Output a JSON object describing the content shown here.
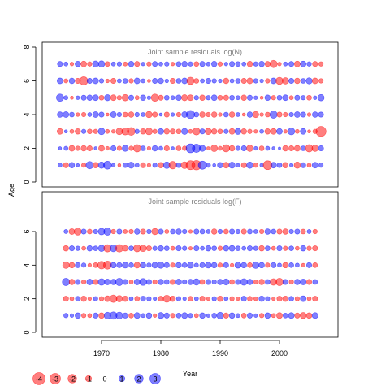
{
  "chart_data": [
    {
      "type": "scatter",
      "title": "Joint sample residuals log(N)",
      "xlabel": "Year",
      "ylabel": "Age",
      "xlim": [
        1962,
        2007
      ],
      "ylim": [
        0,
        8
      ],
      "yticks": [
        0,
        2,
        4,
        6,
        8
      ],
      "ages": [
        1,
        2,
        3,
        4,
        5,
        6,
        7
      ],
      "years": [
        1963,
        2007
      ],
      "color_positive": "#0000ff",
      "color_negative": "#ff0000",
      "residuals": {
        "1": [
          0.5,
          -0.8,
          0.9,
          0.3,
          -0.6,
          1.6,
          -0.9,
          1.2,
          1.9,
          0.4,
          -0.3,
          0.7,
          1.1,
          0.5,
          -0.8,
          -0.4,
          0.6,
          -0.9,
          1.3,
          -1.7,
          0.7,
          -1.4,
          -2.4,
          -2.6,
          2.0,
          0.6,
          0.3,
          0.9,
          -1.0,
          1.1,
          0.4,
          -0.8,
          1.2,
          -0.6,
          0.4,
          -2.3,
          1.0,
          0.7,
          -0.9,
          0.4,
          -1.2,
          0.8,
          -0.5,
          1.0,
          0.6
        ],
        "2": [
          0.3,
          0.5,
          -1.0,
          -0.6,
          -0.9,
          -0.8,
          0.3,
          -1.0,
          -0.4,
          0.8,
          -0.6,
          1.1,
          -0.6,
          -1.6,
          0.7,
          -0.4,
          0.9,
          0.5,
          -0.8,
          0.3,
          -0.7,
          -0.6,
          2.3,
          2.0,
          1.1,
          -0.3,
          -1.3,
          -0.5,
          -1.5,
          -0.9,
          0.6,
          0.8,
          -1.2,
          0.4,
          -0.7,
          0.5,
          0.3,
          0.2,
          -0.9,
          -0.8,
          -1.0,
          0.7,
          -1.6,
          -1.2,
          0.8
        ],
        "3": [
          -1.0,
          0.3,
          -0.5,
          -0.9,
          0.6,
          -0.7,
          -0.6,
          1.3,
          -0.5,
          -0.4,
          -1.3,
          -1.5,
          -1.8,
          0.6,
          -0.9,
          -1.4,
          -0.6,
          1.0,
          -0.9,
          -0.8,
          -0.7,
          1.1,
          -0.5,
          -1.5,
          0.8,
          -1.2,
          -0.9,
          -0.7,
          0.6,
          -1.0,
          1.1,
          -0.9,
          -0.6,
          -0.4,
          0.5,
          -0.9,
          -1.0,
          1.0,
          -0.4,
          1.4,
          -0.5,
          1.0,
          -0.3,
          -0.6,
          -3.0
        ],
        "4": [
          0.9,
          1.0,
          0.7,
          -0.4,
          -0.6,
          0.5,
          1.0,
          0.8,
          -0.3,
          1.0,
          0.6,
          -0.7,
          -0.9,
          0.6,
          0.5,
          -1.2,
          -0.8,
          0.3,
          -0.8,
          0.4,
          -0.6,
          1.0,
          2.0,
          0.7,
          -0.9,
          -0.6,
          -0.9,
          -0.4,
          0.7,
          -0.9,
          0.5,
          -0.3,
          0.9,
          -1.1,
          -0.4,
          -0.7,
          1.6,
          -0.8,
          -0.6,
          0.6,
          1.0,
          0.8,
          -0.4,
          0.9,
          0.8
        ],
        "5": [
          1.6,
          0.5,
          -0.3,
          0.4,
          0.8,
          0.9,
          1.0,
          -0.7,
          1.1,
          -1.0,
          -0.6,
          -1.2,
          0.8,
          -0.5,
          0.9,
          0.4,
          -1.6,
          -0.8,
          0.7,
          0.5,
          0.9,
          -1.1,
          -1.0,
          0.6,
          -0.9,
          0.6,
          1.0,
          -0.7,
          -0.8,
          0.7,
          0.5,
          -0.9,
          0.8,
          0.4,
          -0.3,
          0.9,
          -0.6,
          0.7,
          1.0,
          -0.5,
          0.8,
          0.6,
          -0.7,
          0.4,
          1.2
        ],
        "6": [
          1.0,
          -0.5,
          0.9,
          -0.8,
          -2.0,
          0.8,
          1.0,
          0.6,
          -0.4,
          -0.8,
          0.5,
          0.7,
          -0.6,
          1.0,
          0.5,
          -0.3,
          0.8,
          0.9,
          0.4,
          -0.8,
          0.7,
          1.0,
          -1.6,
          -0.7,
          0.5,
          0.8,
          0.6,
          0.4,
          -0.9,
          0.5,
          0.7,
          -0.8,
          -1.0,
          0.6,
          0.4,
          -0.6,
          1.0,
          -1.5,
          -1.2,
          0.8,
          -0.9,
          0.7,
          1.1,
          -1.0,
          -0.6
        ],
        "7": [
          0.8,
          0.5,
          -0.4,
          0.9,
          -1.0,
          -0.6,
          1.1,
          1.2,
          -0.7,
          0.5,
          0.6,
          -0.5,
          0.9,
          -0.8,
          0.4,
          -0.6,
          0.8,
          0.5,
          0.6,
          -0.4,
          0.7,
          0.9,
          0.6,
          -0.7,
          0.8,
          0.5,
          0.9,
          -0.6,
          0.4,
          0.8,
          0.7,
          0.5,
          -0.9,
          0.6,
          0.9,
          -0.8,
          -1.6,
          -0.4,
          0.5,
          0.8,
          -1.0,
          1.0,
          0.6,
          -0.8,
          -0.6
        ]
      }
    },
    {
      "type": "scatter",
      "title": "Joint sample residuals log(F)",
      "xlabel": "Year",
      "ylabel": "Age",
      "xlim": [
        1962,
        2007
      ],
      "ylim": [
        0,
        7
      ],
      "yticks": [
        0,
        2,
        4,
        6
      ],
      "xticks": [
        1970,
        1980,
        1990,
        2000
      ],
      "ages": [
        1,
        2,
        3,
        4,
        5,
        6
      ],
      "years": [
        1964,
        2006
      ],
      "color_positive": "#0000ff",
      "color_negative": "#ff0000",
      "residuals": {
        "1": [
          0.6,
          0.4,
          0.9,
          -0.6,
          -0.5,
          0.8,
          -0.9,
          1.3,
          1.6,
          1.4,
          0.8,
          -0.7,
          1.0,
          0.5,
          0.9,
          -0.4,
          1.1,
          0.8,
          -0.6,
          0.7,
          1.0,
          0.6,
          -0.5,
          0.9,
          0.4,
          0.7,
          1.3,
          -0.8,
          0.9,
          0.5,
          -0.7,
          0.8,
          0.4,
          -0.6,
          0.9,
          -0.5,
          -1.0,
          0.7,
          1.0,
          -0.8,
          -1.1,
          -0.9,
          1.0
        ],
        "2": [
          -0.8,
          -0.5,
          0.7,
          -0.9,
          -0.4,
          0.6,
          -0.6,
          -1.0,
          -1.6,
          -1.2,
          -0.9,
          0.5,
          -0.7,
          0.8,
          0.6,
          0.4,
          -0.8,
          -1.5,
          -0.9,
          0.6,
          0.4,
          -0.7,
          0.5,
          -0.8,
          -0.4,
          0.6,
          -0.9,
          0.5,
          -0.6,
          -0.4,
          0.8,
          -0.7,
          -0.5,
          0.9,
          0.6,
          -0.4,
          -0.8,
          -0.9,
          0.7,
          -0.6,
          1.0,
          -0.5,
          -0.8
        ],
        "3": [
          1.6,
          -0.9,
          0.8,
          -0.6,
          1.0,
          -0.8,
          1.3,
          1.0,
          0.9,
          1.6,
          0.8,
          -0.5,
          1.0,
          1.4,
          0.8,
          -0.6,
          0.9,
          0.7,
          -0.8,
          1.0,
          0.6,
          0.9,
          1.2,
          -0.7,
          0.8,
          0.6,
          0.9,
          1.1,
          -0.7,
          0.8,
          1.3,
          0.9,
          -0.5,
          -0.9,
          0.7,
          -1.3,
          -1.6,
          0.8,
          -0.6,
          0.9,
          1.0,
          -0.8,
          0.7
        ],
        "4": [
          -1.3,
          -0.9,
          0.8,
          0.6,
          -0.4,
          -0.7,
          -1.7,
          -1.9,
          0.9,
          0.8,
          1.0,
          0.7,
          -1.0,
          0.9,
          0.6,
          1.0,
          1.2,
          0.8,
          -0.6,
          0.9,
          0.7,
          1.1,
          0.5,
          0.8,
          1.0,
          0.9,
          -0.6,
          0.8,
          -0.4,
          1.1,
          0.9,
          -0.7,
          1.3,
          0.9,
          -0.6,
          0.8,
          0.5,
          -0.9,
          0.7,
          0.5,
          -0.4,
          0.8,
          -0.7
        ],
        "5": [
          -0.9,
          0.8,
          0.6,
          -0.5,
          0.9,
          0.7,
          1.2,
          -1.6,
          1.4,
          -1.7,
          -0.9,
          0.7,
          -1.5,
          -1.3,
          -0.8,
          0.6,
          0.9,
          0.7,
          -0.5,
          0.8,
          0.6,
          -0.4,
          0.8,
          0.5,
          0.9,
          0.7,
          -0.6,
          0.9,
          1.0,
          0.7,
          0.5,
          0.8,
          0.6,
          -0.9,
          0.7,
          -0.5,
          0.8,
          -0.6,
          0.7,
          -0.5,
          0.9,
          -0.6,
          -0.8
        ],
        "6": [
          0.5,
          -1.0,
          -1.5,
          0.8,
          -0.7,
          0.6,
          1.3,
          1.6,
          -0.6,
          0.8,
          -0.5,
          -0.6,
          0.9,
          -0.8,
          0.6,
          -1.2,
          0.8,
          -0.5,
          0.7,
          0.9,
          0.6,
          -0.4,
          0.8,
          0.7,
          0.5,
          -0.9,
          0.6,
          -0.7,
          0.8,
          0.6,
          -0.8,
          0.7,
          0.5,
          -0.6,
          0.9,
          0.7,
          -0.8,
          -0.9,
          0.6,
          0.8,
          -0.7,
          0.5,
          -0.6
        ]
      }
    }
  ],
  "legend": {
    "values": [
      -4,
      -3,
      -2,
      -1,
      0,
      1,
      2,
      3
    ],
    "labels": [
      "-4",
      "-3",
      "-2",
      "-1",
      "0",
      "1",
      "2",
      "3"
    ]
  },
  "x_axis": {
    "title": "Year",
    "ticks": [
      1970,
      1980,
      1990,
      2000
    ],
    "tick_labels": [
      "1970",
      "1980",
      "1990",
      "2000"
    ]
  },
  "y_axis": {
    "title": "Age",
    "top_tick_labels": [
      "0",
      "2",
      "4",
      "6",
      "8"
    ],
    "bottom_tick_labels": [
      "0",
      "2",
      "4",
      "6"
    ]
  },
  "panels": {
    "top_title": "Joint sample residuals log(N)",
    "bottom_title": "Joint sample residuals log(F)"
  }
}
